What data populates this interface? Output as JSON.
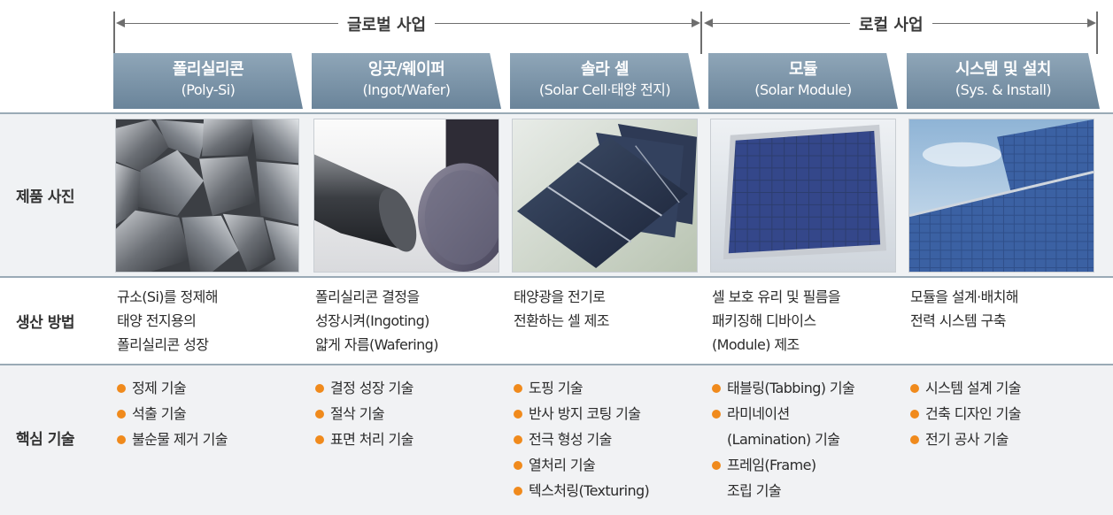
{
  "spans": {
    "global": "글로벌 사업",
    "local": "로컬 사업"
  },
  "stages": [
    {
      "ko": "폴리실리콘",
      "en": "(Poly-Si)"
    },
    {
      "ko": "잉곳/웨이퍼",
      "en": "(Ingot/Wafer)"
    },
    {
      "ko": "솔라 셀",
      "en": "(Solar Cell·태양 전지)"
    },
    {
      "ko": "모듈",
      "en": "(Solar Module)"
    },
    {
      "ko": "시스템 및 설치",
      "en": "(Sys. & Install)"
    }
  ],
  "row_labels": {
    "photo": "제품 사진",
    "method": "생산 방법",
    "core": "핵심 기술"
  },
  "methods": [
    [
      "규소(Si)를 정제해",
      "태양 전지용의",
      "폴리실리콘 성장"
    ],
    [
      "폴리실리콘 결정을",
      "성장시켜(Ingoting)",
      "얇게 자름(Wafering)"
    ],
    [
      "태양광을 전기로",
      "전환하는 셀 제조"
    ],
    [
      "셀 보호 유리 및 필름을",
      "패키징해 디바이스",
      "(Module) 제조"
    ],
    [
      "모듈을 설계·배치해",
      "전력 시스템 구축"
    ]
  ],
  "core_tech": [
    [
      [
        "정제 기술"
      ],
      [
        "석출 기술"
      ],
      [
        "불순물 제거 기술"
      ]
    ],
    [
      [
        "결정 성장 기술"
      ],
      [
        "절삭 기술"
      ],
      [
        "표면 처리 기술"
      ]
    ],
    [
      [
        "도핑 기술"
      ],
      [
        "반사 방지 코팅 기술"
      ],
      [
        "전극 형성 기술"
      ],
      [
        "열처리 기술"
      ],
      [
        "텍스처링(Texturing)"
      ]
    ],
    [
      [
        "태블링(Tabbing) 기술"
      ],
      [
        "라미네이션",
        "(Lamination) 기술"
      ],
      [
        "프레임(Frame)",
        "조립 기술"
      ]
    ],
    [
      [
        "시스템 설계 기술"
      ],
      [
        "건축 디자인 기술"
      ],
      [
        "전기 공사 기술"
      ]
    ]
  ],
  "colors": {
    "tab": "#7a93a8",
    "bullet": "#f08a1c",
    "divider": "#9aaab6"
  }
}
